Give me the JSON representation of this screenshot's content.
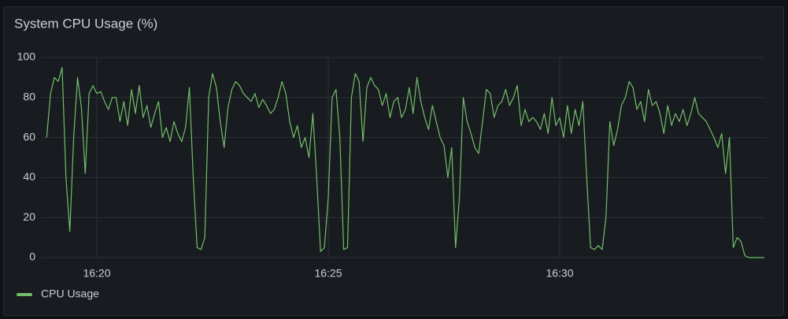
{
  "chart_data": {
    "type": "line",
    "title": "System CPU Usage (%)",
    "categories": [
      null,
      null,
      null,
      null,
      null,
      null,
      null,
      null,
      null,
      null,
      null,
      null,
      null,
      "16:20",
      null,
      null,
      null,
      null,
      null,
      null,
      null,
      null,
      null,
      null,
      null,
      null,
      null,
      null,
      null,
      null,
      null,
      null,
      null,
      null,
      null,
      null,
      null,
      null,
      null,
      null,
      null,
      null,
      null,
      null,
      null,
      null,
      null,
      null,
      null,
      null,
      null,
      null,
      null,
      null,
      null,
      null,
      null,
      null,
      null,
      null,
      null,
      null,
      null,
      null,
      null,
      null,
      null,
      null,
      null,
      null,
      null,
      null,
      null,
      "16:25",
      null,
      null,
      null,
      null,
      null,
      null,
      null,
      null,
      null,
      null,
      null,
      null,
      null,
      null,
      null,
      null,
      null,
      null,
      null,
      null,
      null,
      null,
      null,
      null,
      null,
      null,
      null,
      null,
      null,
      null,
      null,
      null,
      null,
      null,
      null,
      null,
      null,
      null,
      null,
      null,
      null,
      null,
      null,
      null,
      null,
      null,
      null,
      null,
      null,
      null,
      null,
      null,
      null,
      null,
      null,
      null,
      null,
      null,
      null,
      "16:30",
      null,
      null,
      null,
      null,
      null,
      null,
      null,
      null,
      null,
      null,
      null,
      null,
      null,
      null,
      null,
      null,
      null,
      null,
      null,
      null,
      null,
      null,
      null,
      null,
      null,
      null,
      null,
      null,
      null,
      null,
      null,
      null,
      null,
      null,
      null,
      null,
      null,
      null,
      null,
      null,
      null,
      null,
      null,
      null,
      null,
      null,
      null,
      null,
      null,
      null,
      null,
      null,
      null
    ],
    "series": [
      {
        "name": "CPU Usage",
        "color": "#73bf69",
        "values": [
          60,
          82,
          90,
          88,
          95,
          40,
          13,
          60,
          90,
          75,
          42,
          82,
          86,
          82,
          83,
          78,
          74,
          80,
          80,
          68,
          78,
          66,
          84,
          72,
          86,
          70,
          76,
          65,
          72,
          78,
          60,
          65,
          58,
          68,
          62,
          58,
          65,
          85,
          40,
          5,
          4,
          10,
          80,
          92,
          85,
          68,
          55,
          75,
          84,
          88,
          86,
          82,
          80,
          78,
          82,
          75,
          79,
          76,
          72,
          74,
          80,
          88,
          82,
          68,
          60,
          66,
          55,
          60,
          50,
          72,
          40,
          3,
          5,
          30,
          80,
          84,
          60,
          4,
          5,
          80,
          92,
          88,
          58,
          85,
          90,
          86,
          84,
          76,
          82,
          70,
          78,
          80,
          70,
          74,
          85,
          72,
          90,
          78,
          70,
          64,
          76,
          68,
          60,
          56,
          40,
          55,
          5,
          30,
          80,
          68,
          62,
          55,
          52,
          68,
          84,
          82,
          70,
          76,
          78,
          84,
          76,
          80,
          86,
          66,
          74,
          68,
          70,
          68,
          64,
          72,
          62,
          80,
          66,
          70,
          60,
          76,
          62,
          74,
          66,
          78,
          40,
          5,
          4,
          6,
          4,
          20,
          68,
          56,
          64,
          76,
          80,
          88,
          85,
          74,
          78,
          68,
          84,
          76,
          78,
          72,
          62,
          76,
          66,
          72,
          68,
          74,
          66,
          72,
          80,
          72,
          70,
          68,
          64,
          60,
          55,
          62,
          42,
          60,
          5,
          10,
          8,
          1,
          0,
          0,
          0,
          0,
          0
        ]
      }
    ],
    "ylim": [
      0,
      100
    ],
    "yticks": [
      0,
      20,
      40,
      60,
      80,
      100
    ],
    "grid": true,
    "legend": "bottom-left"
  }
}
